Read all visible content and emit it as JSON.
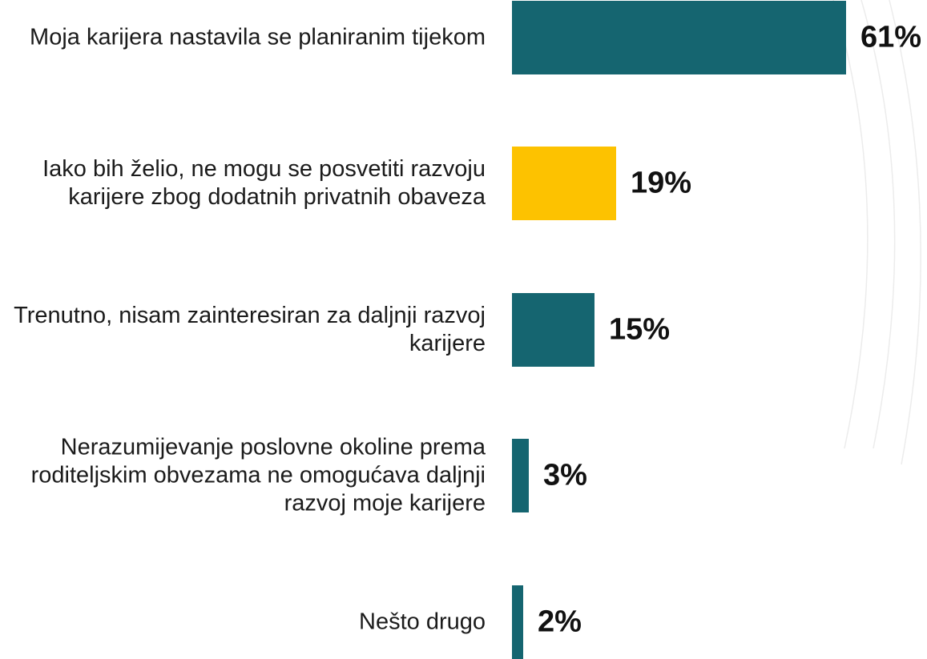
{
  "chart_data": {
    "type": "bar",
    "orientation": "horizontal",
    "title": "",
    "xlabel": "",
    "ylabel": "",
    "xlim": [
      0,
      61
    ],
    "grid": false,
    "legend": "none",
    "colors": {
      "primary": "#156570",
      "highlight": "#FDC200"
    },
    "categories": [
      "Moja karijera nastavila se planiranim tijekom",
      "Iako bih želio, ne mogu se posvetiti razvoju karijere zbog dodatnih privatnih obaveza",
      "Trenutno, nisam zainteresiran za daljnji razvoj karijere",
      "Nerazumijevanje poslovne okoline prema roditeljskim obvezama ne omogućava daljnji razvoj moje karijere",
      "Nešto drugo"
    ],
    "values": [
      61,
      19,
      15,
      3,
      2
    ],
    "value_labels": [
      "61%",
      "19%",
      "15%",
      "3%",
      "2%"
    ],
    "bar_colors": [
      "#156570",
      "#FDC200",
      "#156570",
      "#156570",
      "#156570"
    ]
  }
}
